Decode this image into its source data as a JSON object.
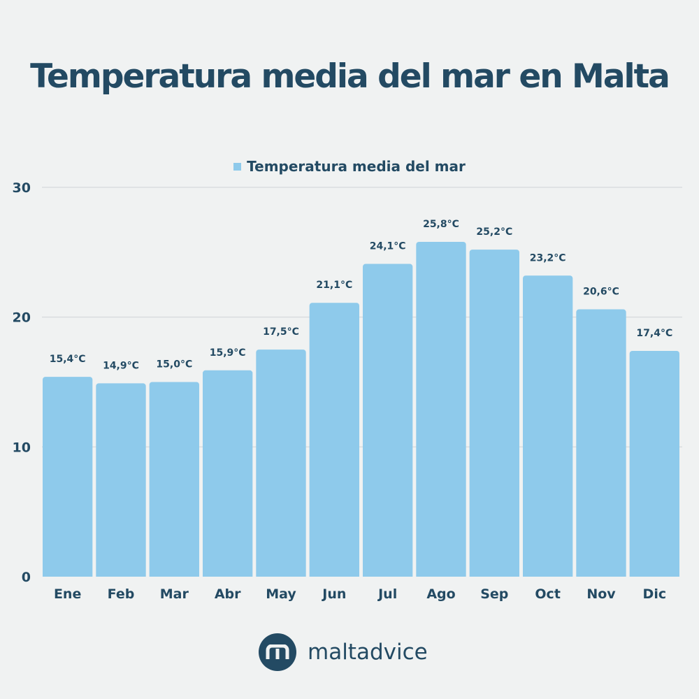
{
  "chart_data": {
    "type": "bar",
    "title": "Temperatura media del mar en Malta",
    "legend": {
      "entries": [
        "Temperatura media del mar"
      ],
      "placement": "top-center"
    },
    "categories": [
      "Ene",
      "Feb",
      "Mar",
      "Abr",
      "May",
      "Jun",
      "Jul",
      "Ago",
      "Sep",
      "Oct",
      "Nov",
      "Dic"
    ],
    "series": [
      {
        "name": "Temperatura media del mar",
        "values": [
          15.4,
          14.9,
          15.0,
          15.9,
          17.5,
          21.1,
          24.1,
          25.8,
          25.2,
          23.2,
          20.6,
          17.4
        ]
      }
    ],
    "data_labels": [
      "15,4°C",
      "14,9°C",
      "15,0°C",
      "15,9°C",
      "17,5°C",
      "21,1°C",
      "24,1°C",
      "25,8°C",
      "25,2°C",
      "23,2°C",
      "20,6°C",
      "17,4°C"
    ],
    "ylim": [
      0,
      30
    ],
    "yticks": [
      0,
      10,
      20,
      30
    ],
    "grid": true,
    "xlabel": "",
    "ylabel": "",
    "colors": {
      "bar": "#8ecaeb",
      "text": "#234a63",
      "grid": "#d9dcdf",
      "background": "#f0f2f2"
    }
  },
  "brand": {
    "name": "maltadvice",
    "logo_letter": "m"
  }
}
